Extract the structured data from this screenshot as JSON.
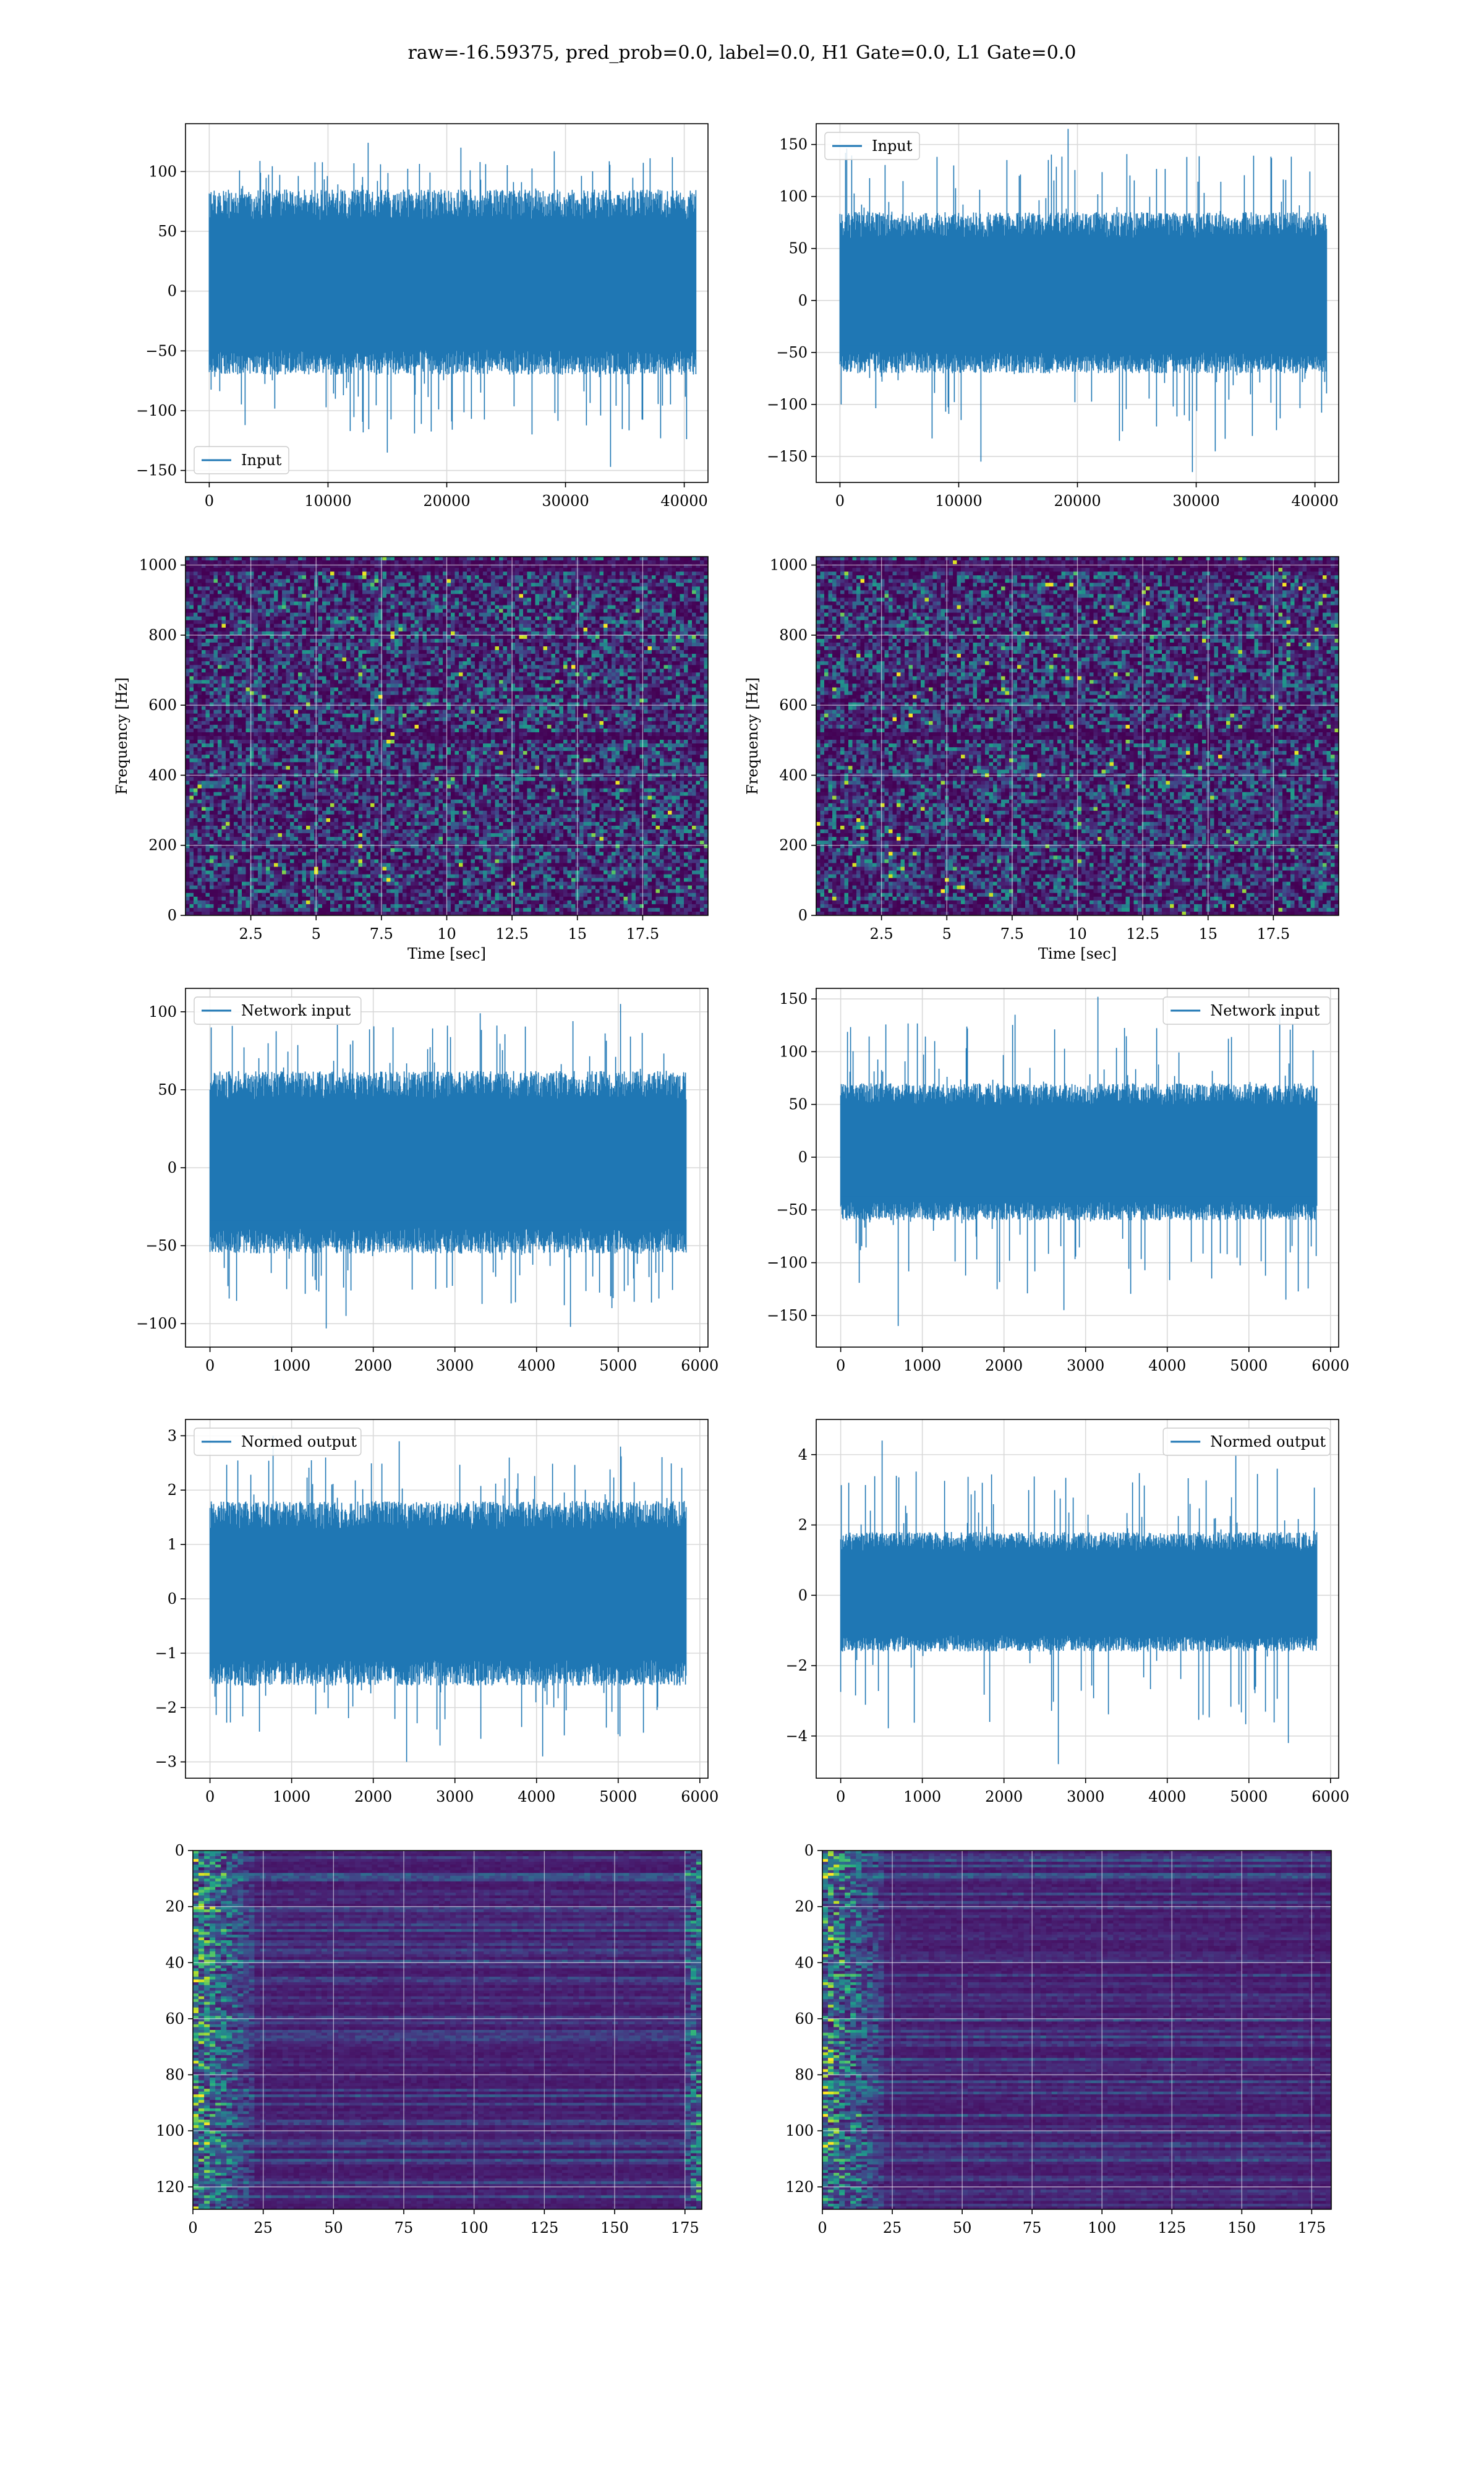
{
  "figure": {
    "title": "raw=-16.59375, pred_prob=0.0, label=0.0, H1 Gate=0.0, L1 Gate=0.0"
  },
  "colors": {
    "series": "#1f77b4",
    "grid": "#d9d9d9",
    "spine": "#000000",
    "viridis": [
      "#440154",
      "#482475",
      "#414487",
      "#355f8d",
      "#2a788e",
      "#21918c",
      "#22a884",
      "#44bf70",
      "#7ad151",
      "#bddf26",
      "#fde725"
    ]
  },
  "chart_data": [
    {
      "id": "input-h1",
      "type": "line",
      "title": "",
      "xlabel": "",
      "ylabel": "",
      "xlim": [
        -2000,
        42000
      ],
      "ylim": [
        -160,
        140
      ],
      "xticks": [
        0,
        10000,
        20000,
        30000,
        40000
      ],
      "yticks": [
        -150,
        -100,
        -50,
        0,
        50,
        100
      ],
      "grid": true,
      "legend": {
        "entries": [
          "Input"
        ],
        "placement": "lower-left"
      },
      "series": [
        {
          "name": "Input",
          "n_samples": 40960,
          "x_range": [
            0,
            40960
          ],
          "envelope_typical": [
            -70,
            85
          ],
          "peaks_high": [
            124,
            120,
            117,
            112
          ],
          "peaks_low": [
            -147,
            -135,
            -119,
            -109
          ],
          "min": -147,
          "max": 124
        }
      ]
    },
    {
      "id": "input-l1",
      "type": "line",
      "title": "",
      "xlabel": "",
      "ylabel": "",
      "xlim": [
        -2000,
        42000
      ],
      "ylim": [
        -175,
        170
      ],
      "xticks": [
        0,
        10000,
        20000,
        30000,
        40000
      ],
      "yticks": [
        -150,
        -100,
        -50,
        0,
        50,
        100,
        150
      ],
      "grid": true,
      "legend": {
        "entries": [
          "Input"
        ],
        "placement": "upper-left"
      },
      "series": [
        {
          "name": "Input",
          "n_samples": 40960,
          "x_range": [
            0,
            40960
          ],
          "envelope_typical": [
            -70,
            85
          ],
          "peaks_high": [
            165,
            146,
            142,
            135
          ],
          "peaks_low": [
            -165,
            -155,
            -145,
            -135
          ],
          "min": -165,
          "max": 165
        }
      ]
    },
    {
      "id": "spectrogram-h1",
      "type": "heatmap",
      "title": "",
      "xlabel": "Time [sec]",
      "ylabel": "Frequency [Hz]",
      "xlim": [
        0,
        20
      ],
      "ylim": [
        0,
        1024
      ],
      "xticks": [
        2.5,
        5.0,
        7.5,
        10.0,
        12.5,
        15.0,
        17.5
      ],
      "yticks": [
        0,
        200,
        400,
        600,
        800,
        1000
      ],
      "grid": true,
      "colormap": "viridis",
      "features": {
        "dark_bands_hz": [
          0,
          512,
          1000
        ],
        "description": "noise-like spectrogram, mostly dark purple with scattered bright pixels"
      }
    },
    {
      "id": "spectrogram-l1",
      "type": "heatmap",
      "title": "",
      "xlabel": "Time [sec]",
      "ylabel": "Frequency [Hz]",
      "xlim": [
        0,
        20
      ],
      "ylim": [
        0,
        1024
      ],
      "xticks": [
        2.5,
        5.0,
        7.5,
        10.0,
        12.5,
        15.0,
        17.5
      ],
      "yticks": [
        0,
        200,
        400,
        600,
        800,
        1000
      ],
      "grid": true,
      "colormap": "viridis",
      "features": {
        "dark_bands_hz": [
          0,
          512,
          1000
        ]
      }
    },
    {
      "id": "network-input-h1",
      "type": "line",
      "title": "",
      "xlabel": "",
      "ylabel": "",
      "xlim": [
        -300,
        6100
      ],
      "ylim": [
        -115,
        115
      ],
      "xticks": [
        0,
        1000,
        2000,
        3000,
        4000,
        5000,
        6000
      ],
      "yticks": [
        -100,
        -50,
        0,
        50,
        100
      ],
      "grid": true,
      "legend": {
        "entries": [
          "Network input"
        ],
        "placement": "upper-left"
      },
      "series": [
        {
          "name": "Network input",
          "n_samples": 5830,
          "x_range": [
            0,
            5830
          ],
          "envelope_typical": [
            -55,
            62
          ],
          "peaks_high": [
            105,
            99,
            94,
            90
          ],
          "peaks_low": [
            -103,
            -102,
            -95,
            -90
          ],
          "min": -103,
          "max": 105
        }
      ]
    },
    {
      "id": "network-input-l1",
      "type": "line",
      "title": "",
      "xlabel": "",
      "ylabel": "",
      "xlim": [
        -300,
        6100
      ],
      "ylim": [
        -180,
        160
      ],
      "xticks": [
        0,
        1000,
        2000,
        3000,
        4000,
        5000,
        6000
      ],
      "yticks": [
        -150,
        -100,
        -50,
        0,
        50,
        100,
        150
      ],
      "grid": true,
      "legend": {
        "entries": [
          "Network input"
        ],
        "placement": "upper-right"
      },
      "series": [
        {
          "name": "Network input",
          "n_samples": 5830,
          "x_range": [
            0,
            5830
          ],
          "envelope_typical": [
            -60,
            70
          ],
          "peaks_high": [
            152,
            140,
            135,
            122
          ],
          "peaks_low": [
            -160,
            -145,
            -135,
            -115
          ],
          "min": -160,
          "max": 152
        }
      ]
    },
    {
      "id": "normed-output-h1",
      "type": "line",
      "title": "",
      "xlabel": "",
      "ylabel": "",
      "xlim": [
        -300,
        6100
      ],
      "ylim": [
        -3.3,
        3.3
      ],
      "xticks": [
        0,
        1000,
        2000,
        3000,
        4000,
        5000,
        6000
      ],
      "yticks": [
        -3,
        -2,
        -1,
        0,
        1,
        2,
        3
      ],
      "grid": true,
      "legend": {
        "entries": [
          "Normed output"
        ],
        "placement": "upper-left"
      },
      "series": [
        {
          "name": "Normed output",
          "n_samples": 5830,
          "x_range": [
            0,
            5830
          ],
          "envelope_typical": [
            -1.6,
            1.8
          ],
          "peaks_high": [
            3.0,
            2.9,
            2.8,
            2.6
          ],
          "peaks_low": [
            -3.0,
            -2.9,
            -2.9,
            -2.7
          ],
          "min": -3.0,
          "max": 3.0
        }
      ]
    },
    {
      "id": "normed-output-l1",
      "type": "line",
      "title": "",
      "xlabel": "",
      "ylabel": "",
      "xlim": [
        -300,
        6100
      ],
      "ylim": [
        -5.2,
        5.0
      ],
      "xticks": [
        0,
        1000,
        2000,
        3000,
        4000,
        5000,
        6000
      ],
      "yticks": [
        -4,
        -2,
        0,
        2,
        4
      ],
      "grid": true,
      "legend": {
        "entries": [
          "Normed output"
        ],
        "placement": "upper-right"
      },
      "series": [
        {
          "name": "Normed output",
          "n_samples": 5830,
          "x_range": [
            0,
            5830
          ],
          "envelope_typical": [
            -1.6,
            1.8
          ],
          "peaks_high": [
            4.4,
            4.0,
            3.6,
            3.2
          ],
          "peaks_low": [
            -4.8,
            -4.2,
            -3.6,
            -3.4
          ],
          "min": -4.8,
          "max": 4.4
        }
      ]
    },
    {
      "id": "feature-map-h1",
      "type": "heatmap",
      "title": "",
      "xlabel": "",
      "ylabel": "",
      "xlim": [
        0,
        181
      ],
      "ylim": [
        128,
        0
      ],
      "xticks": [
        0,
        25,
        50,
        75,
        100,
        125,
        150,
        175
      ],
      "yticks": [
        0,
        20,
        40,
        60,
        80,
        100,
        120
      ],
      "grid": true,
      "colormap": "viridis",
      "features": {
        "n_rows": 128,
        "n_cols": 181,
        "bright_columns": [
          0,
          1,
          2,
          3,
          4,
          5,
          6,
          7,
          8,
          9,
          10,
          11,
          12,
          13,
          14,
          15,
          16,
          17,
          18,
          19,
          20,
          174,
          175,
          176,
          177,
          178,
          179,
          180
        ]
      }
    },
    {
      "id": "feature-map-l1",
      "type": "heatmap",
      "title": "",
      "xlabel": "",
      "ylabel": "",
      "xlim": [
        0,
        182
      ],
      "ylim": [
        128,
        0
      ],
      "xticks": [
        0,
        25,
        50,
        75,
        100,
        125,
        150,
        175
      ],
      "yticks": [
        0,
        20,
        40,
        60,
        80,
        100,
        120
      ],
      "grid": true,
      "colormap": "viridis",
      "features": {
        "n_rows": 128,
        "n_cols": 182,
        "bright_columns": [
          0,
          1,
          2,
          3,
          4,
          5,
          6,
          7,
          8,
          9,
          10,
          11,
          12,
          13,
          14,
          15,
          16,
          17,
          18,
          19,
          20
        ]
      }
    }
  ]
}
